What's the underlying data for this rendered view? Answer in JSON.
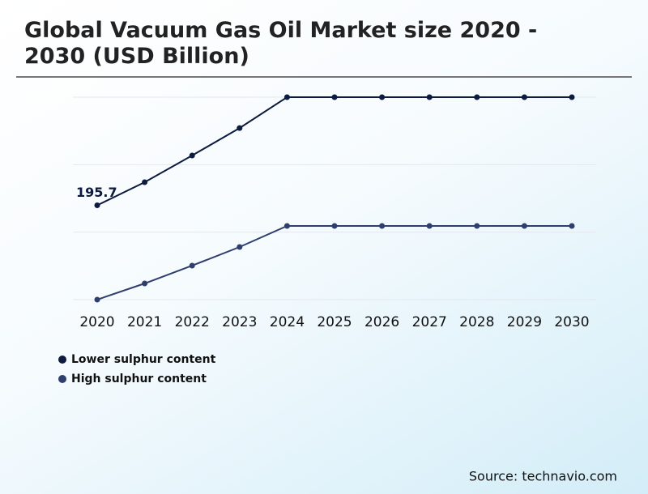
{
  "chart_data": {
    "type": "line",
    "title": "Global Vacuum Gas Oil Market size 2020 - 2030 (USD Billion)",
    "source": "Source: technavio.com",
    "categories": [
      "2020",
      "2021",
      "2022",
      "2023",
      "2024",
      "2025",
      "2026",
      "2027",
      "2028",
      "2029",
      "2030"
    ],
    "series": [
      {
        "name": "Lower sulphur content",
        "color": "#0d1b3e",
        "values": [
          195.7,
          243.6,
          299,
          356,
          420,
          420,
          420,
          420,
          420,
          420,
          420
        ]
      },
      {
        "name": "High sulphur content",
        "color": "#2e3f6e",
        "values": [
          0,
          33.6,
          70.6,
          109.2,
          152.9,
          152.9,
          152.9,
          152.9,
          152.9,
          152.9,
          152.9
        ]
      }
    ],
    "ylim": [
      0,
      420
    ],
    "yticks": [
      0,
      140,
      280,
      420
    ],
    "grid": true
  }
}
